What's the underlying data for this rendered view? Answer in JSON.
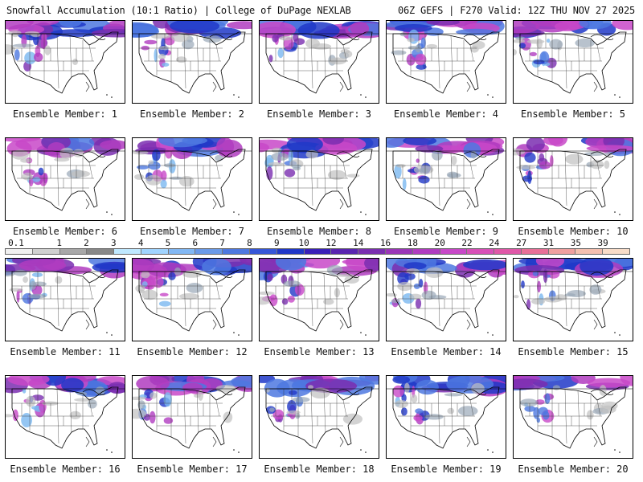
{
  "header": {
    "title_left": "Snowfall Accumulation (10:1 Ratio) | College of DuPage NEXLAB",
    "title_right": "06Z GEFS | F270 Valid: 12Z THU NOV 27 2025"
  },
  "members": [
    {
      "label": "Ensemble Member: 1"
    },
    {
      "label": "Ensemble Member: 2"
    },
    {
      "label": "Ensemble Member: 3"
    },
    {
      "label": "Ensemble Member: 4"
    },
    {
      "label": "Ensemble Member: 5"
    },
    {
      "label": "Ensemble Member: 6"
    },
    {
      "label": "Ensemble Member: 7"
    },
    {
      "label": "Ensemble Member: 8"
    },
    {
      "label": "Ensemble Member: 9"
    },
    {
      "label": "Ensemble Member: 10"
    },
    {
      "label": "Ensemble Member: 11"
    },
    {
      "label": "Ensemble Member: 12"
    },
    {
      "label": "Ensemble Member: 13"
    },
    {
      "label": "Ensemble Member: 14"
    },
    {
      "label": "Ensemble Member: 15"
    },
    {
      "label": "Ensemble Member: 16"
    },
    {
      "label": "Ensemble Member: 17"
    },
    {
      "label": "Ensemble Member: 18"
    },
    {
      "label": "Ensemble Member: 19"
    },
    {
      "label": "Ensemble Member: 20"
    }
  ],
  "colorbar": {
    "labels": [
      "0.1",
      "1",
      "2",
      "3",
      "4",
      "5",
      "6",
      "7",
      "8",
      "9",
      "10",
      "12",
      "14",
      "16",
      "18",
      "20",
      "22",
      "24",
      "27",
      "31",
      "35",
      "39"
    ],
    "colors": [
      "#f0f0f0",
      "#d0d0d0",
      "#a8a8a8",
      "#888888",
      "#bfe8ff",
      "#a0d4ff",
      "#82b8f4",
      "#6a9ae8",
      "#4e78e0",
      "#3656d8",
      "#2038c8",
      "#3a20b8",
      "#5a24b0",
      "#7a2eb0",
      "#9a36b8",
      "#b03cc0",
      "#c848c8",
      "#d850b8",
      "#e058a8",
      "#e87098",
      "#f0a0a0",
      "#f4c0b0",
      "#f8dcc8"
    ]
  }
}
